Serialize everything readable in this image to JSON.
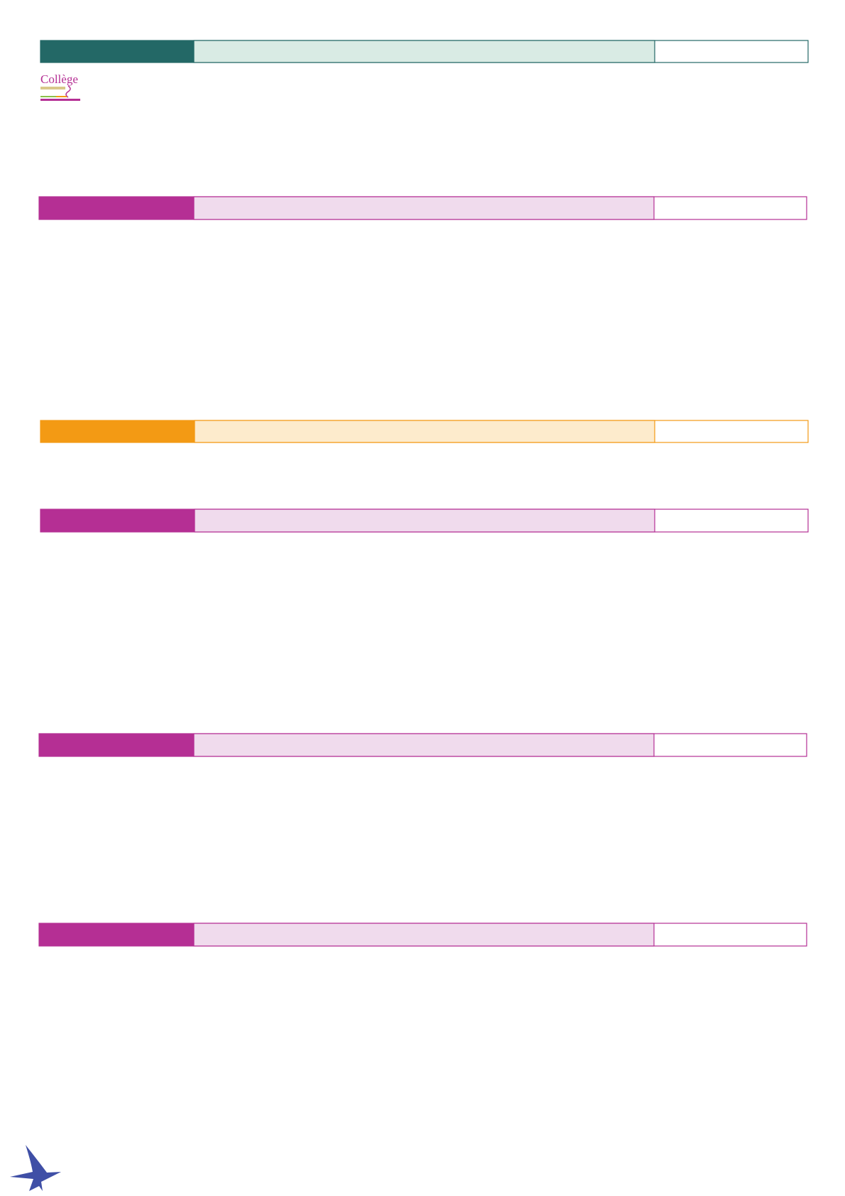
{
  "logo": {
    "text": "Collège"
  }
}
